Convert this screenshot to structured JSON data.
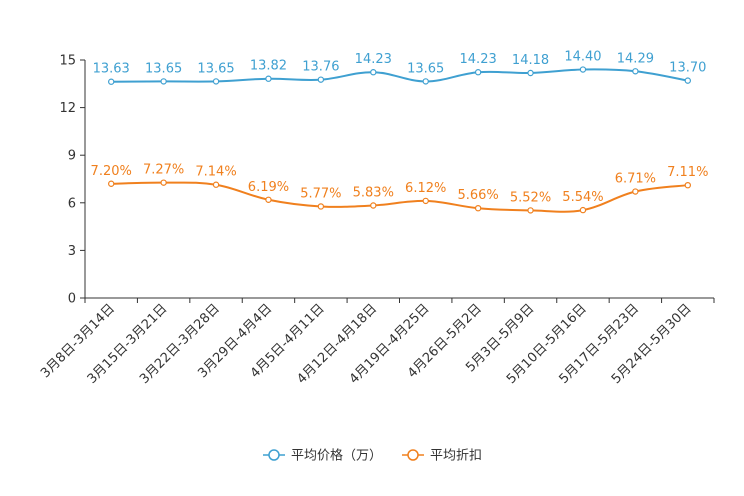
{
  "chart_data": {
    "type": "line",
    "title": "",
    "xlabel": "",
    "ylabel": "",
    "ylim": [
      0,
      15
    ],
    "yticks": [
      0,
      3,
      6,
      9,
      12,
      15
    ],
    "categories": [
      "3月8日-3月14日",
      "3月15日-3月21日",
      "3月22日-3月28日",
      "3月29日-4月4日",
      "4月5日-4月11日",
      "4月12日-4月18日",
      "4月19日-4月25日",
      "4月26日-5月2日",
      "5月3日-5月9日",
      "5月10日-5月16日",
      "5月17日-5月23日",
      "5月24日-5月30日"
    ],
    "series": [
      {
        "name": "平均价格（万）",
        "color": "#3fa0d1",
        "values": [
          13.63,
          13.65,
          13.65,
          13.82,
          13.76,
          14.23,
          13.65,
          14.23,
          14.18,
          14.4,
          14.29,
          13.7
        ],
        "labels": [
          "13.63",
          "13.65",
          "13.65",
          "13.82",
          "13.76",
          "14.23",
          "13.65",
          "14.23",
          "14.18",
          "14.40",
          "14.29",
          "13.70"
        ]
      },
      {
        "name": "平均折扣",
        "color": "#f0801e",
        "values": [
          7.2,
          7.27,
          7.14,
          6.19,
          5.77,
          5.83,
          6.12,
          5.66,
          5.52,
          5.54,
          6.71,
          7.11
        ],
        "labels": [
          "7.20%",
          "7.27%",
          "7.14%",
          "6.19%",
          "5.77%",
          "5.83%",
          "6.12%",
          "5.66%",
          "5.52%",
          "5.54%",
          "6.71%",
          "7.11%"
        ]
      }
    ],
    "legend_position": "bottom-center",
    "grid": false
  }
}
